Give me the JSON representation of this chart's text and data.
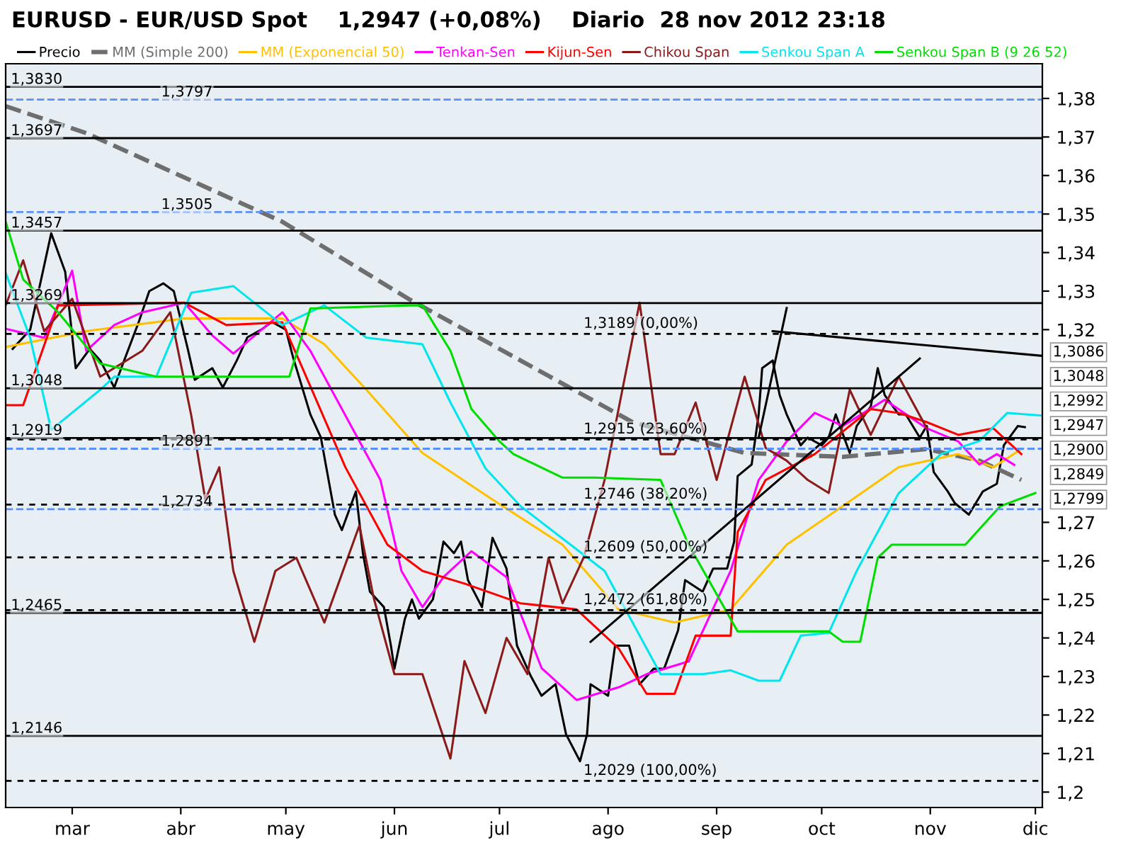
{
  "chart_data": {
    "type": "line",
    "title": "EURUSD - EUR/USD Spot    1,2947 (+0,08%)    Diario  28 nov 2012 23:18",
    "xlim": [
      "2012-02-11",
      "2012-12-03"
    ],
    "xticks": [
      {
        "value": "2012-03-01",
        "label": "mar"
      },
      {
        "value": "2012-04-01",
        "label": "abr"
      },
      {
        "value": "2012-05-01",
        "label": "may"
      },
      {
        "value": "2012-06-01",
        "label": "jun"
      },
      {
        "value": "2012-07-01",
        "label": "jul"
      },
      {
        "value": "2012-08-01",
        "label": "ago"
      },
      {
        "value": "2012-09-01",
        "label": "sep"
      },
      {
        "value": "2012-10-01",
        "label": "oct"
      },
      {
        "value": "2012-11-01",
        "label": "nov"
      },
      {
        "value": "2012-12-01",
        "label": "dic"
      }
    ],
    "ylim": [
      1.196,
      1.389
    ],
    "yticks": [
      {
        "value": 1.2,
        "label": "1,2"
      },
      {
        "value": 1.21,
        "label": "1,21"
      },
      {
        "value": 1.22,
        "label": "1,22"
      },
      {
        "value": 1.23,
        "label": "1,23"
      },
      {
        "value": 1.24,
        "label": "1,24"
      },
      {
        "value": 1.25,
        "label": "1,25"
      },
      {
        "value": 1.26,
        "label": "1,26"
      },
      {
        "value": 1.27,
        "label": "1,27"
      },
      {
        "value": 1.32,
        "label": "1,32"
      },
      {
        "value": 1.33,
        "label": "1,33"
      },
      {
        "value": 1.34,
        "label": "1,34"
      },
      {
        "value": 1.35,
        "label": "1,35"
      },
      {
        "value": 1.36,
        "label": "1,36"
      },
      {
        "value": 1.37,
        "label": "1,37"
      },
      {
        "value": 1.38,
        "label": "1,38"
      }
    ],
    "legend": "top",
    "grid": false,
    "series": [
      {
        "name": "Precio",
        "color": "#000000",
        "x": [
          "2012-02-13",
          "2012-02-18",
          "2012-02-24",
          "2012-02-28",
          "2012-03-02",
          "2012-03-06",
          "2012-03-09",
          "2012-03-13",
          "2012-03-15",
          "2012-03-20",
          "2012-03-23",
          "2012-03-27",
          "2012-03-30",
          "2012-04-03",
          "2012-04-05",
          "2012-04-10",
          "2012-04-13",
          "2012-04-17",
          "2012-04-20",
          "2012-04-24",
          "2012-04-27",
          "2012-05-01",
          "2012-05-03",
          "2012-05-08",
          "2012-05-11",
          "2012-05-15",
          "2012-05-17",
          "2012-05-21",
          "2012-05-23",
          "2012-05-25",
          "2012-05-29",
          "2012-05-31",
          "2012-06-01",
          "2012-06-04",
          "2012-06-06",
          "2012-06-08",
          "2012-06-12",
          "2012-06-15",
          "2012-06-18",
          "2012-06-20",
          "2012-06-22",
          "2012-06-26",
          "2012-06-29",
          "2012-07-03",
          "2012-07-06",
          "2012-07-10",
          "2012-07-13",
          "2012-07-17",
          "2012-07-20",
          "2012-07-24",
          "2012-07-26",
          "2012-07-27",
          "2012-08-01",
          "2012-08-03",
          "2012-08-07",
          "2012-08-10",
          "2012-08-14",
          "2012-08-17",
          "2012-08-21",
          "2012-08-23",
          "2012-08-28",
          "2012-08-31",
          "2012-09-04",
          "2012-09-06",
          "2012-09-07",
          "2012-09-11",
          "2012-09-13",
          "2012-09-14",
          "2012-09-17",
          "2012-09-19",
          "2012-09-21",
          "2012-09-25",
          "2012-09-27",
          "2012-10-01",
          "2012-10-03",
          "2012-10-05",
          "2012-10-09",
          "2012-10-11",
          "2012-10-15",
          "2012-10-17",
          "2012-10-19",
          "2012-10-23",
          "2012-10-25",
          "2012-10-29",
          "2012-10-31",
          "2012-11-02",
          "2012-11-06",
          "2012-11-08",
          "2012-11-12",
          "2012-11-14",
          "2012-11-16",
          "2012-11-20",
          "2012-11-22",
          "2012-11-26",
          "2012-11-28"
        ],
        "values": [
          1.315,
          1.32,
          1.345,
          1.335,
          1.31,
          1.315,
          1.312,
          1.305,
          1.31,
          1.322,
          1.33,
          1.332,
          1.33,
          1.315,
          1.307,
          1.31,
          1.305,
          1.312,
          1.318,
          1.32,
          1.322,
          1.32,
          1.313,
          1.298,
          1.292,
          1.272,
          1.268,
          1.278,
          1.262,
          1.252,
          1.248,
          1.238,
          1.232,
          1.245,
          1.25,
          1.245,
          1.25,
          1.265,
          1.262,
          1.265,
          1.255,
          1.248,
          1.266,
          1.258,
          1.238,
          1.23,
          1.225,
          1.228,
          1.215,
          1.208,
          1.215,
          1.228,
          1.225,
          1.238,
          1.238,
          1.228,
          1.232,
          1.232,
          1.242,
          1.255,
          1.252,
          1.258,
          1.258,
          1.265,
          1.282,
          1.285,
          1.298,
          1.31,
          1.312,
          1.303,
          1.298,
          1.29,
          1.292,
          1.29,
          1.292,
          1.298,
          1.288,
          1.295,
          1.3,
          1.31,
          1.303,
          1.298,
          1.298,
          1.292,
          1.295,
          1.283,
          1.278,
          1.275,
          1.272,
          1.275,
          1.278,
          1.28,
          1.29,
          1.295,
          1.2947
        ]
      },
      {
        "name": "MM (Simple 200)",
        "color": "#6e6e6e",
        "line_style": "dashed",
        "x": [
          "2012-02-11",
          "2012-03-05",
          "2012-04-30",
          "2012-06-05",
          "2012-07-15",
          "2012-08-08",
          "2012-09-09",
          "2012-10-07",
          "2012-10-31",
          "2012-11-15",
          "2012-11-27"
        ],
        "values": [
          1.378,
          1.371,
          1.348,
          1.328,
          1.308,
          1.296,
          1.288,
          1.287,
          1.289,
          1.286,
          1.281
        ]
      },
      {
        "name": "MM (Exponencial 50)",
        "color": "#ffc000",
        "x": [
          "2012-02-11",
          "2012-03-05",
          "2012-04-02",
          "2012-04-30",
          "2012-05-12",
          "2012-05-24",
          "2012-06-09",
          "2012-06-29",
          "2012-07-19",
          "2012-08-04",
          "2012-08-20",
          "2012-09-05",
          "2012-09-21",
          "2012-10-07",
          "2012-10-23",
          "2012-11-09",
          "2012-11-19",
          "2012-11-27"
        ],
        "values": [
          1.3155,
          1.3196,
          1.3229,
          1.3229,
          1.3162,
          1.3044,
          1.288,
          1.2759,
          1.2642,
          1.2474,
          1.244,
          1.2474,
          1.2642,
          1.2742,
          1.2843,
          1.2877,
          1.2843,
          1.289
        ]
      },
      {
        "name": "Tenkan-Sen",
        "color": "#ff00ff",
        "x": [
          "2012-02-11",
          "2012-02-22",
          "2012-03-01",
          "2012-03-05",
          "2012-03-13",
          "2012-03-21",
          "2012-04-02",
          "2012-04-10",
          "2012-04-16",
          "2012-04-30",
          "2012-05-08",
          "2012-05-20",
          "2012-05-28",
          "2012-06-03",
          "2012-06-09",
          "2012-06-15",
          "2012-06-23",
          "2012-07-03",
          "2012-07-13",
          "2012-07-23",
          "2012-08-04",
          "2012-08-12",
          "2012-08-24",
          "2012-09-05",
          "2012-09-13",
          "2012-09-21",
          "2012-09-29",
          "2012-10-07",
          "2012-10-19",
          "2012-10-31",
          "2012-11-09",
          "2012-11-15",
          "2012-11-20",
          "2012-11-25"
        ],
        "values": [
          1.3202,
          1.3179,
          1.3353,
          1.3145,
          1.3212,
          1.3245,
          1.327,
          1.3185,
          1.3138,
          1.3245,
          1.3145,
          1.2944,
          1.281,
          1.2574,
          1.248,
          1.2558,
          1.2625,
          1.2558,
          1.2322,
          1.2239,
          1.2272,
          1.2306,
          1.2339,
          1.2574,
          1.281,
          1.291,
          1.2984,
          1.295,
          1.3018,
          1.2944,
          1.291,
          1.285,
          1.2877,
          1.2849
        ]
      },
      {
        "name": "Kijun-Sen",
        "color": "#ff0000",
        "x": [
          "2012-02-11",
          "2012-02-16",
          "2012-02-26",
          "2012-04-02",
          "2012-04-14",
          "2012-04-30",
          "2012-05-06",
          "2012-05-18",
          "2012-05-30",
          "2012-06-09",
          "2012-06-21",
          "2012-07-07",
          "2012-07-23",
          "2012-08-04",
          "2012-08-12",
          "2012-08-20",
          "2012-08-26",
          "2012-09-05",
          "2012-09-07",
          "2012-09-15",
          "2012-09-29",
          "2012-10-15",
          "2012-10-23",
          "2012-10-31",
          "2012-11-09",
          "2012-11-19",
          "2012-11-27"
        ],
        "values": [
          1.3004,
          1.3004,
          1.3263,
          1.327,
          1.3212,
          1.3219,
          1.3095,
          1.2843,
          1.2642,
          1.2574,
          1.2541,
          1.249,
          1.2474,
          1.2373,
          1.2255,
          1.2255,
          1.2406,
          1.2406,
          1.2675,
          1.281,
          1.2877,
          1.2994,
          1.2984,
          1.296,
          1.2927,
          1.2944,
          1.2877
        ]
      },
      {
        "name": "Chikou Span",
        "color": "#8b1a1a",
        "x": [
          "2012-02-11",
          "2012-02-16",
          "2012-02-22",
          "2012-03-01",
          "2012-03-09",
          "2012-03-21",
          "2012-03-29",
          "2012-04-04",
          "2012-04-08",
          "2012-04-12",
          "2012-04-16",
          "2012-04-22",
          "2012-04-28",
          "2012-05-04",
          "2012-05-12",
          "2012-05-22",
          "2012-05-26",
          "2012-06-01",
          "2012-06-09",
          "2012-06-17",
          "2012-06-21",
          "2012-06-27",
          "2012-07-03",
          "2012-07-09",
          "2012-07-15",
          "2012-07-19",
          "2012-07-25",
          "2012-07-31",
          "2012-08-10",
          "2012-08-16",
          "2012-08-20",
          "2012-08-26",
          "2012-09-01",
          "2012-09-09",
          "2012-09-15",
          "2012-09-21",
          "2012-09-27",
          "2012-10-03",
          "2012-10-09",
          "2012-10-15",
          "2012-10-23",
          "2012-10-31"
        ],
        "values": [
          1.3263,
          1.338,
          1.3196,
          1.328,
          1.3078,
          1.3145,
          1.3245,
          1.2977,
          1.2759,
          1.2843,
          1.2574,
          1.239,
          1.2574,
          1.2608,
          1.244,
          1.2692,
          1.2507,
          1.2306,
          1.2306,
          1.2087,
          1.234,
          1.2205,
          1.24,
          1.2306,
          1.2608,
          1.249,
          1.2608,
          1.281,
          1.327,
          1.2877,
          1.2877,
          1.3011,
          1.281,
          1.3078,
          1.2893,
          1.286,
          1.281,
          1.2776,
          1.3044,
          1.2927,
          1.3078,
          1.2944
        ]
      },
      {
        "name": "Senkou Span A",
        "color": "#00e5ee",
        "x": [
          "2012-02-11",
          "2012-02-18",
          "2012-02-24",
          "2012-03-09",
          "2012-03-13",
          "2012-03-25",
          "2012-04-04",
          "2012-04-16",
          "2012-04-30",
          "2012-05-12",
          "2012-05-24",
          "2012-06-09",
          "2012-06-17",
          "2012-06-27",
          "2012-07-07",
          "2012-07-19",
          "2012-07-31",
          "2012-08-16",
          "2012-08-28",
          "2012-09-05",
          "2012-09-13",
          "2012-09-19",
          "2012-09-25",
          "2012-10-03",
          "2012-10-11",
          "2012-10-23",
          "2012-11-04",
          "2012-11-15",
          "2012-11-23",
          "2012-12-03"
        ],
        "values": [
          1.3347,
          1.3179,
          1.294,
          1.3044,
          1.3078,
          1.3078,
          1.3296,
          1.3313,
          1.3212,
          1.3263,
          1.3179,
          1.3162,
          1.3011,
          1.284,
          1.2742,
          1.2658,
          1.2574,
          1.2306,
          1.2306,
          1.2316,
          1.2289,
          1.2289,
          1.2406,
          1.2413,
          1.2574,
          1.2776,
          1.2877,
          1.2911,
          1.2984,
          1.2977
        ]
      },
      {
        "name": "Senkou Span B (9 26 52)",
        "color": "#00dd00",
        "x": [
          "2012-02-11",
          "2012-02-16",
          "2012-02-26",
          "2012-03-09",
          "2012-03-25",
          "2012-05-02",
          "2012-05-08",
          "2012-06-05",
          "2012-06-09",
          "2012-06-17",
          "2012-06-23",
          "2012-07-01",
          "2012-07-05",
          "2012-07-19",
          "2012-07-28",
          "2012-08-16",
          "2012-08-24",
          "2012-09-07",
          "2012-10-03",
          "2012-10-07",
          "2012-10-12",
          "2012-10-17",
          "2012-10-21",
          "2012-11-11",
          "2012-11-21",
          "2012-12-01"
        ],
        "values": [
          1.348,
          1.333,
          1.3245,
          1.3112,
          1.3078,
          1.3078,
          1.3255,
          1.3263,
          1.3263,
          1.3145,
          1.2994,
          1.291,
          1.2877,
          1.2816,
          1.2816,
          1.281,
          1.2642,
          1.2417,
          1.2417,
          1.239,
          1.239,
          1.2608,
          1.2642,
          1.2642,
          1.2742,
          1.2776
        ]
      },
      {
        "color": "#000000",
        "x": [
          "2012-07-27",
          "2012-10-29"
        ],
        "values": [
          1.239,
          1.3125
        ]
      },
      {
        "color": "#000000",
        "x": [
          "2012-09-13",
          "2012-09-21"
        ],
        "values": [
          1.292,
          1.3256
        ]
      },
      {
        "color": "#000000",
        "x": [
          "2012-09-17",
          "2012-12-03"
        ],
        "values": [
          1.3196,
          1.3132
        ]
      }
    ],
    "ref_lines": [
      {
        "axis": "y",
        "value": 1.383,
        "label": "1,3830",
        "color": "#000000",
        "line_style": "solid"
      },
      {
        "axis": "y",
        "value": 1.3797,
        "label": "1,3797",
        "color": "#5b8ff9",
        "line_style": "dashed"
      },
      {
        "axis": "y",
        "value": 1.3697,
        "label": "1,3697",
        "color": "#000000",
        "line_style": "solid"
      },
      {
        "axis": "y",
        "value": 1.3505,
        "label": "1,3505",
        "color": "#5b8ff9",
        "line_style": "dashed"
      },
      {
        "axis": "y",
        "value": 1.3457,
        "label": "1,3457",
        "color": "#000000",
        "line_style": "solid"
      },
      {
        "axis": "y",
        "value": 1.3269,
        "label": "1,3269",
        "color": "#000000",
        "line_style": "solid"
      },
      {
        "axis": "y",
        "value": 1.3048,
        "label": "1,3048",
        "color": "#000000",
        "line_style": "solid"
      },
      {
        "axis": "y",
        "value": 1.2919,
        "label": "1,2919",
        "color": "#000000",
        "line_style": "solid"
      },
      {
        "axis": "y",
        "value": 1.2891,
        "label": "1,2891",
        "color": "#5b8ff9",
        "line_style": "dashed"
      },
      {
        "axis": "y",
        "value": 1.2734,
        "label": "1,2734",
        "color": "#5b8ff9",
        "line_style": "dashed"
      },
      {
        "axis": "y",
        "value": 1.2465,
        "label": "1,2465",
        "color": "#000000",
        "line_style": "solid"
      },
      {
        "axis": "y",
        "value": 1.2146,
        "label": "1,2146",
        "color": "#000000",
        "line_style": "solid"
      },
      {
        "axis": "y",
        "value": 1.3189,
        "color": "#000000",
        "line_style": "dotted"
      },
      {
        "axis": "y",
        "value": 1.2915,
        "color": "#000000",
        "line_style": "dotted"
      },
      {
        "axis": "y",
        "value": 1.2746,
        "color": "#000000",
        "line_style": "dotted"
      },
      {
        "axis": "y",
        "value": 1.2609,
        "color": "#000000",
        "line_style": "dotted"
      },
      {
        "axis": "y",
        "value": 1.2472,
        "color": "#000000",
        "line_style": "dotted"
      },
      {
        "axis": "y",
        "value": 1.2029,
        "color": "#000000",
        "line_style": "dotted"
      }
    ],
    "annotations": [
      {
        "text": "1,3189 (0,00%)",
        "x": "2012-07-25",
        "y": 1.3189
      },
      {
        "text": "1,2915 (23,60%)",
        "x": "2012-07-25",
        "y": 1.2915
      },
      {
        "text": "1,2746 (38,20%)",
        "x": "2012-07-25",
        "y": 1.2746
      },
      {
        "text": "1,2609 (50,00%)",
        "x": "2012-07-25",
        "y": 1.2609
      },
      {
        "text": "1,2472 (61,80%)",
        "x": "2012-07-25",
        "y": 1.2472
      },
      {
        "text": "1,2029 (100,00%)",
        "x": "2012-07-25",
        "y": 1.2029
      },
      "1,3086",
      "1,3048",
      "1,2992",
      "1,2947",
      "1,2900",
      "1,2849",
      "1,2799"
    ]
  }
}
